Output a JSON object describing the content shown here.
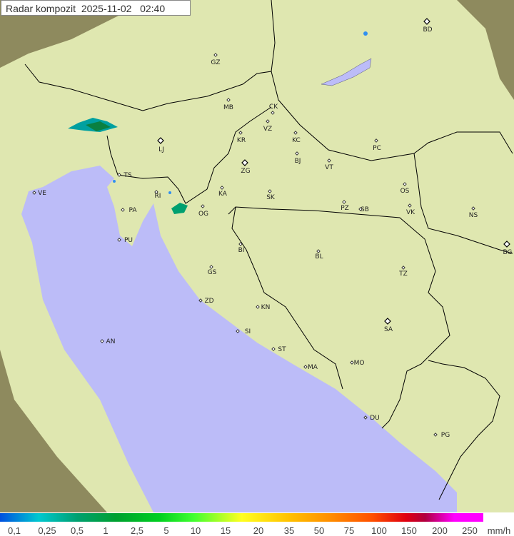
{
  "title": {
    "label": "Radar kompozit",
    "date": "2025-11-02",
    "time": "02:40"
  },
  "legend": {
    "values": [
      "0,1",
      "0,25",
      "0,5",
      "1",
      "2,5",
      "5",
      "10",
      "15",
      "20",
      "35",
      "50",
      "75",
      "100",
      "150",
      "200",
      "250"
    ],
    "unit": "mm/h",
    "colors": [
      "#0050e0",
      "#00c8d0",
      "#00a070",
      "#00d020",
      "#ffff20",
      "#ff9000",
      "#e00010",
      "#ff00ff"
    ]
  },
  "map": {
    "colors": {
      "sea": "#bcbcf8",
      "land_in_coverage": "#dfe7b0",
      "land_outside": "#8e8a5e",
      "border": "#000000"
    },
    "cities": [
      "GZ",
      "BD",
      "MB",
      "CK",
      "VZ",
      "KR",
      "KC",
      "PC",
      "LJ",
      "BJ",
      "VT",
      "ZG",
      "TS",
      "VE",
      "KA",
      "SK",
      "OS",
      "RI",
      "PA",
      "PZ",
      "SB",
      "VK",
      "NS",
      "OG",
      "PU",
      "BI",
      "BG",
      "BL",
      "TZ",
      "GS",
      "ZD",
      "KN",
      "SA",
      "SI",
      "AN",
      "ST",
      "MO",
      "MA",
      "DU",
      "PG"
    ]
  }
}
